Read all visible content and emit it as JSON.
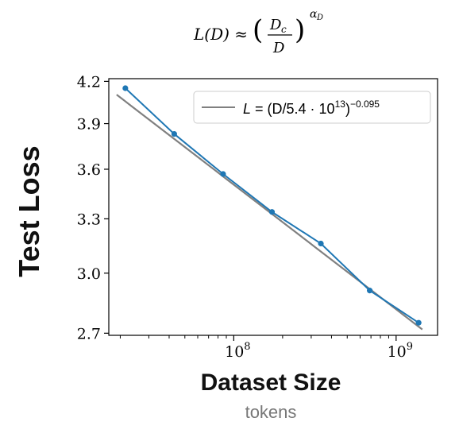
{
  "chart_data": {
    "type": "line",
    "formula": {
      "lhs": "L(D) ≈",
      "numerator": "D",
      "numerator_sub": "c",
      "denominator": "D",
      "exponent_base": "α",
      "exponent_sub": "D"
    },
    "xlabel": "Dataset Size",
    "xlabel_sub": "tokens",
    "ylabel": "Test Loss",
    "x_scale": "log",
    "y_scale": "log",
    "xlim": [
      17000000,
      1800000000
    ],
    "ylim": [
      2.69,
      4.22
    ],
    "yticks": [
      {
        "value": 2.7,
        "label": "2.7"
      },
      {
        "value": 3.0,
        "label": "3.0"
      },
      {
        "value": 3.3,
        "label": "3.3"
      },
      {
        "value": 3.6,
        "label": "3.6"
      },
      {
        "value": 3.9,
        "label": "3.9"
      },
      {
        "value": 4.2,
        "label": "4.2"
      }
    ],
    "xticks_major": [
      {
        "value": 100000000,
        "base": "10",
        "exp": "8"
      },
      {
        "value": 1000000000,
        "base": "10",
        "exp": "9"
      }
    ],
    "xticks_minor": [
      20000000,
      30000000,
      40000000,
      50000000,
      60000000,
      70000000,
      80000000,
      90000000,
      200000000,
      300000000,
      400000000,
      500000000,
      600000000,
      700000000,
      800000000,
      900000000
    ],
    "grid": false,
    "legend_position": "top-right",
    "series": [
      {
        "kind": "data",
        "color": "#1f77b4",
        "marker": "circle",
        "x": [
          21500000,
          43000000,
          86000000,
          172000000,
          344000000,
          688000000,
          1376000000
        ],
        "y": [
          4.15,
          3.83,
          3.57,
          3.34,
          3.16,
          2.91,
          2.75
        ]
      },
      {
        "kind": "fit",
        "color": "#808080",
        "legend_lhs": "L",
        "legend_mid": "(D/5.4 · 10",
        "legend_sup1": "13",
        "legend_close": ")",
        "legend_sup2": "−0.095",
        "fit_scale": 54000000000000,
        "fit_exponent": -0.095,
        "x_range": [
          19000000,
          1450000000
        ]
      }
    ]
  }
}
